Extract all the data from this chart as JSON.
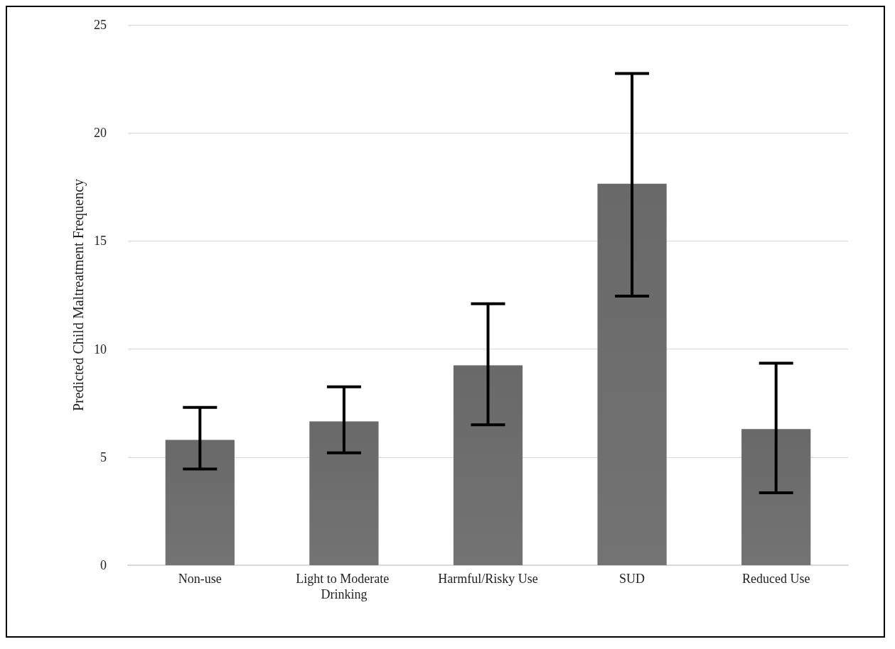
{
  "chart_data": {
    "type": "bar",
    "ylabel": "Predicted Child Maltreatment Frequency",
    "categories": [
      "Non-use",
      "Light to Moderate Drinking",
      "Harmful/Risky Use",
      "SUD",
      "Reduced Use"
    ],
    "values": [
      5.8,
      6.65,
      9.25,
      17.65,
      6.3
    ],
    "errors": [
      [
        4.45,
        7.3
      ],
      [
        5.2,
        8.25
      ],
      [
        6.5,
        12.1
      ],
      [
        12.45,
        22.75
      ],
      [
        3.35,
        9.35
      ]
    ],
    "color": "#606060",
    "ylim": [
      0,
      25
    ],
    "yticks": [
      0,
      5,
      10,
      15,
      20,
      25
    ],
    "grid": "y"
  }
}
